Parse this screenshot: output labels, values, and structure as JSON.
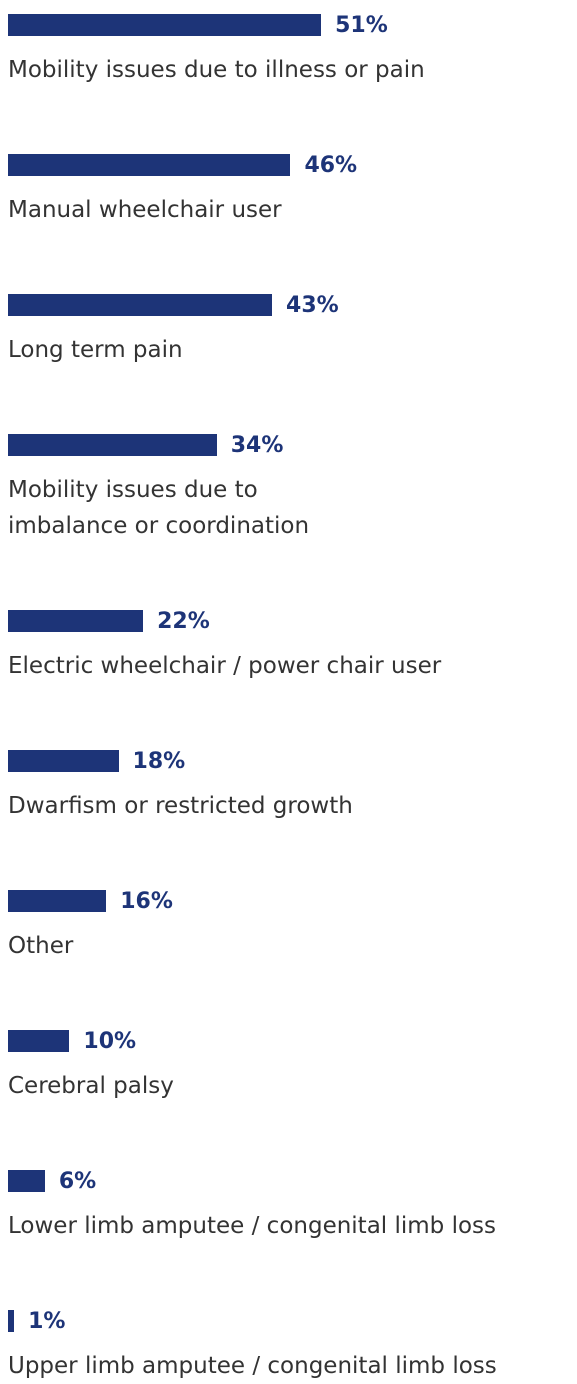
{
  "chart_data": {
    "type": "bar",
    "orientation": "horizontal",
    "color": "#1d3478",
    "categories": [
      "Mobility issues due to illness or pain",
      "Manual wheelchair user",
      "Long term pain",
      "Mobility issues due to\nimbalance or coordination",
      "Electric wheelchair / power chair user",
      "Dwarfism or restricted growth",
      "Other",
      "Cerebral palsy",
      "Lower limb amputee / congenital limb loss",
      "Upper limb amputee / congenital limb loss"
    ],
    "values": [
      51,
      46,
      43,
      34,
      22,
      18,
      16,
      10,
      6,
      1
    ],
    "value_labels": [
      "51%",
      "46%",
      "43%",
      "34%",
      "22%",
      "18%",
      "16%",
      "10%",
      "6%",
      "1%"
    ]
  }
}
